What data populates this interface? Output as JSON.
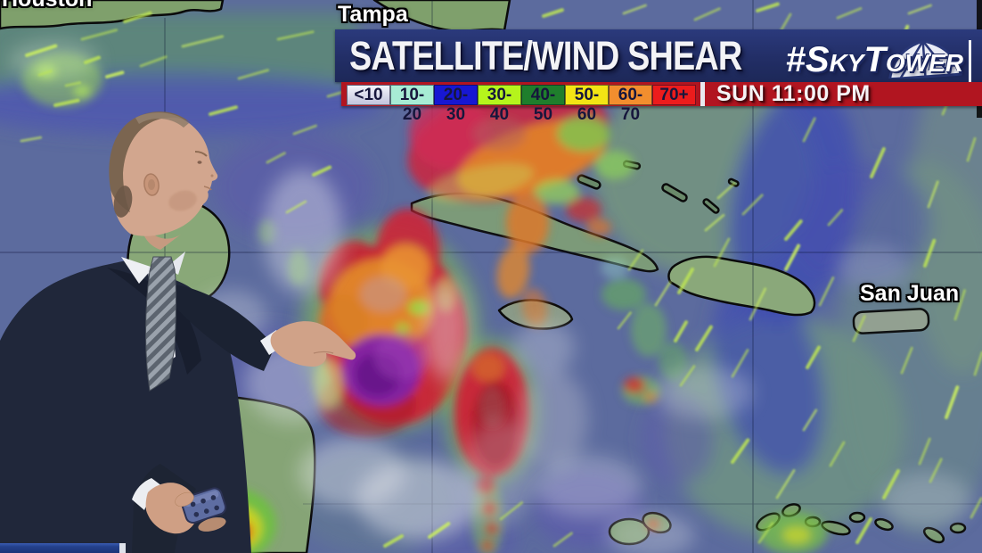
{
  "header": {
    "title": "SATELLITE/WIND SHEAR",
    "brand": "#SkyTower",
    "timestamp": "SUN 11:00 PM"
  },
  "legend": {
    "items": [
      {
        "label": "<10",
        "color": "#dadbe9"
      },
      {
        "label": "10-20",
        "color": "#a7ecd4"
      },
      {
        "label": "20-30",
        "color": "#1717d2"
      },
      {
        "label": "30-40",
        "color": "#b5f41c"
      },
      {
        "label": "40-50",
        "color": "#1f7e2c"
      },
      {
        "label": "50-60",
        "color": "#f3e414"
      },
      {
        "label": "60-70",
        "color": "#f28e2e"
      },
      {
        "label": "70+",
        "color": "#ec1c1c"
      }
    ]
  },
  "map_labels": {
    "houston": "Houston",
    "tampa": "Tampa",
    "san_juan": "San Juan"
  },
  "colors": {
    "header_bar": "#232f66",
    "banner_red": "#b11520",
    "ocean_base": "#5c6b9e",
    "storm_red": "#cc2136",
    "storm_orange": "#e2882a",
    "storm_purple_core": "#7d1f9e",
    "wind_streak": "#bce455"
  }
}
